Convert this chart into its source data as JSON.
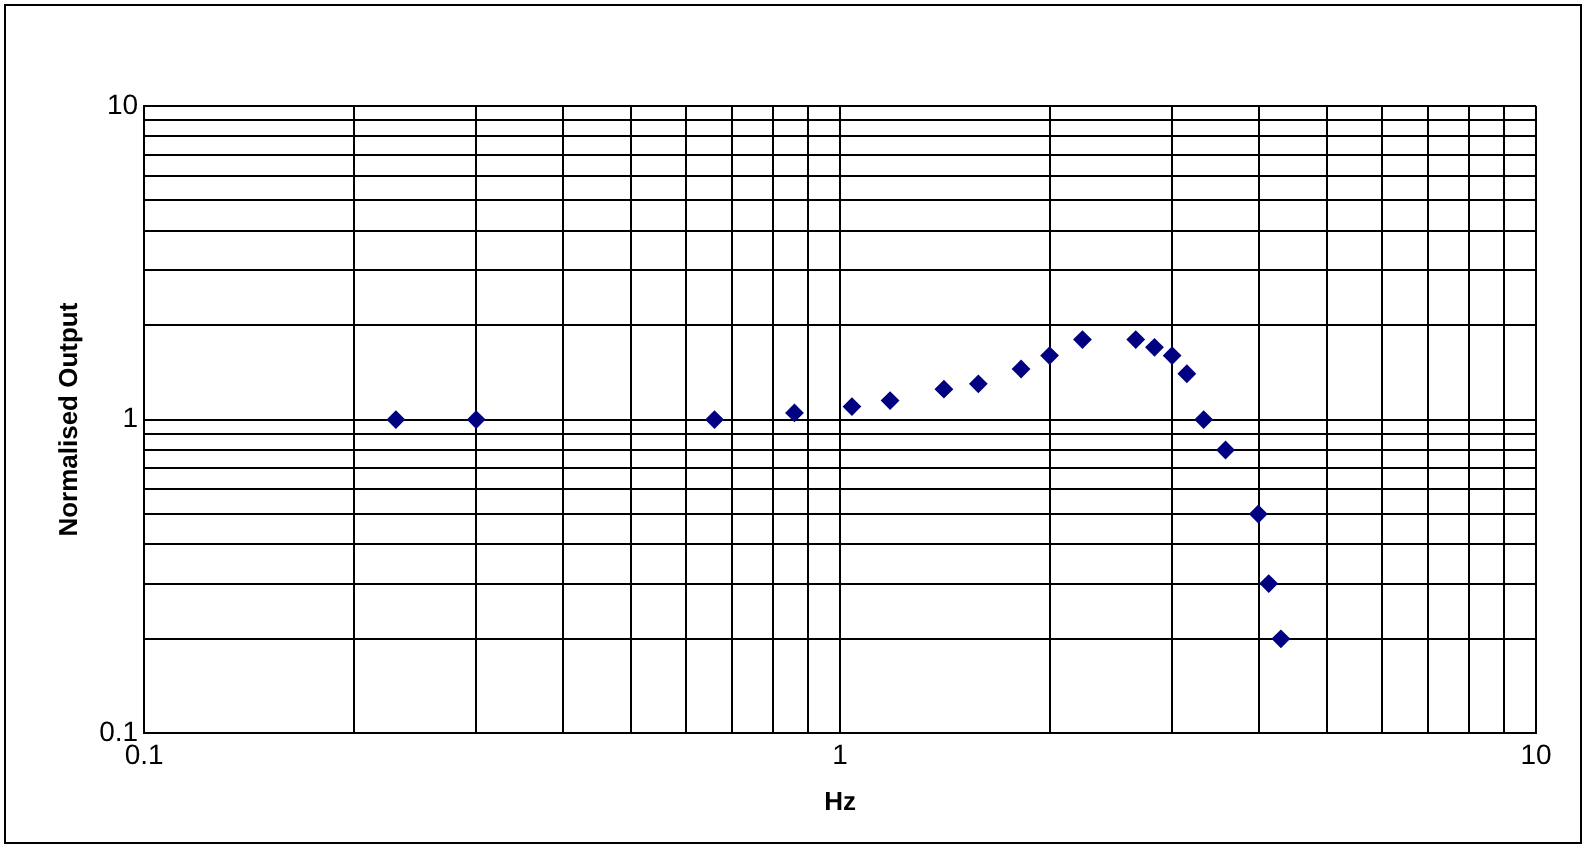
{
  "chart_data": {
    "type": "scatter",
    "xlabel": "Hz",
    "ylabel": "Normalised Output",
    "log": "xy",
    "grid": true,
    "marker": "diamond",
    "xlim": [
      0.1,
      10
    ],
    "ylim": [
      0.1,
      10
    ],
    "xticks": [
      0.1,
      {
        "value": 0.2,
        "label": null
      },
      {
        "value": 0.3,
        "label": null
      },
      {
        "value": 0.4,
        "label": null
      },
      {
        "value": 0.5,
        "label": null
      },
      {
        "value": 0.6,
        "label": null
      },
      {
        "value": 0.7,
        "label": null
      },
      {
        "value": 0.8,
        "label": null
      },
      {
        "value": 0.9,
        "label": null
      },
      1,
      {
        "value": 2,
        "label": null
      },
      {
        "value": 3,
        "label": null
      },
      {
        "value": 4,
        "label": null
      },
      {
        "value": 5,
        "label": null
      },
      {
        "value": 6,
        "label": null
      },
      {
        "value": 7,
        "label": null
      },
      {
        "value": 8,
        "label": null
      },
      {
        "value": 9,
        "label": null
      },
      10
    ],
    "yticks": [
      0.1,
      {
        "value": 0.2,
        "label": null
      },
      {
        "value": 0.3,
        "label": null
      },
      {
        "value": 0.4,
        "label": null
      },
      {
        "value": 0.5,
        "label": null
      },
      {
        "value": 0.6,
        "label": null
      },
      {
        "value": 0.7,
        "label": null
      },
      {
        "value": 0.8,
        "label": null
      },
      {
        "value": 0.9,
        "label": null
      },
      1,
      {
        "value": 2,
        "label": null
      },
      {
        "value": 3,
        "label": null
      },
      {
        "value": 4,
        "label": null
      },
      {
        "value": 5,
        "label": null
      },
      {
        "value": 6,
        "label": null
      },
      {
        "value": 7,
        "label": null
      },
      {
        "value": 8,
        "label": null
      },
      {
        "value": 9,
        "label": null
      },
      10
    ],
    "series": [
      {
        "color": "#000080",
        "x": [
          0.23,
          0.3,
          0.66,
          0.86,
          1.04,
          1.18,
          1.41,
          1.58,
          1.82,
          2.0,
          2.23,
          2.66,
          2.83,
          3.0,
          3.15,
          3.33,
          3.58,
          3.99,
          4.13,
          4.3
        ],
        "values": [
          1,
          1,
          1,
          1.05,
          1.1,
          1.15,
          1.25,
          1.3,
          1.45,
          1.6,
          1.8,
          1.8,
          1.7,
          1.6,
          1.4,
          1,
          0.8,
          0.5,
          0.3,
          0.2
        ]
      }
    ]
  }
}
